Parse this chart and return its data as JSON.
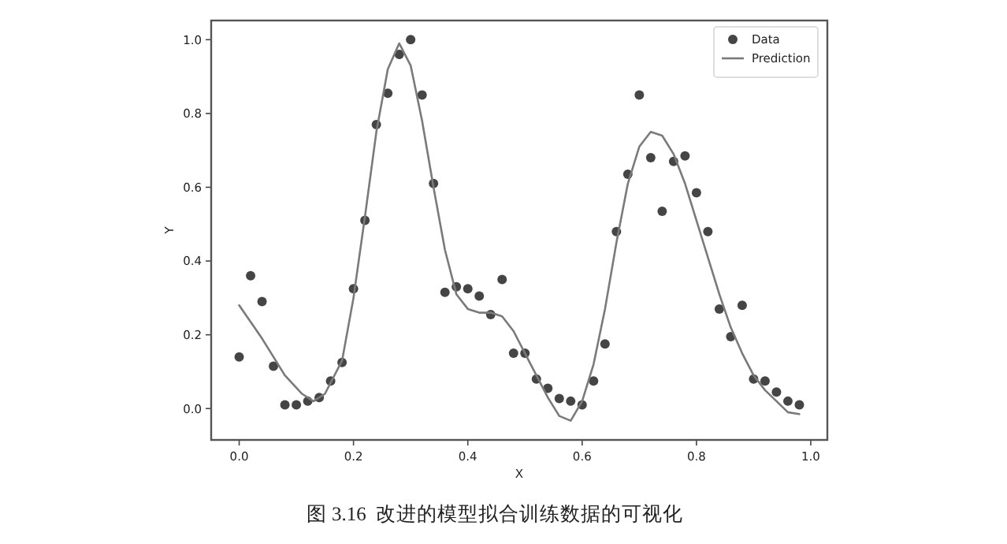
{
  "chart_data": {
    "type": "scatter",
    "xlabel": "X",
    "ylabel": "Y",
    "annotations": [
      "图 3.16  改进的模型拟合训练数据的可视化"
    ],
    "xlim": [
      -0.049,
      1.029
    ],
    "ylim": [
      -0.085,
      1.052
    ],
    "xticks": [
      {
        "value": 0,
        "label": "0.0"
      },
      {
        "value": 0.2,
        "label": "0.2"
      },
      {
        "value": 0.4,
        "label": "0.4"
      },
      {
        "value": 0.6,
        "label": "0.6"
      },
      {
        "value": 0.8,
        "label": "0.8"
      },
      {
        "value": 1,
        "label": "1.0"
      }
    ],
    "yticks": [
      {
        "value": 0,
        "label": "0.0"
      },
      {
        "value": 0.2,
        "label": "0.2"
      },
      {
        "value": 0.4,
        "label": "0.4"
      },
      {
        "value": 0.6,
        "label": "0.6"
      },
      {
        "value": 0.8,
        "label": "0.8"
      },
      {
        "value": 1,
        "label": "1.0"
      }
    ],
    "legend": "top right",
    "series": [
      {
        "name": "Data",
        "color": "#454545",
        "marker": "circle",
        "x": [
          0,
          0.02,
          0.04,
          0.06,
          0.08,
          0.1,
          0.12,
          0.14,
          0.16,
          0.18,
          0.2,
          0.22,
          0.24,
          0.26,
          0.28,
          0.3,
          0.32,
          0.34,
          0.36,
          0.38,
          0.4,
          0.42,
          0.44,
          0.46,
          0.48,
          0.5,
          0.52,
          0.54,
          0.56,
          0.58,
          0.6,
          0.62,
          0.64,
          0.66,
          0.68,
          0.7,
          0.72,
          0.74,
          0.76,
          0.78,
          0.8,
          0.82,
          0.84,
          0.86,
          0.88,
          0.9,
          0.92,
          0.94,
          0.96,
          0.98
        ],
        "values": [
          0.14,
          0.36,
          0.29,
          0.115,
          0.01,
          0.01,
          0.02,
          0.03,
          0.075,
          0.125,
          0.325,
          0.51,
          0.77,
          0.855,
          0.96,
          1.0,
          0.85,
          0.61,
          0.315,
          0.33,
          0.325,
          0.305,
          0.255,
          0.35,
          0.15,
          0.15,
          0.08,
          0.055,
          0.027,
          0.02,
          0.01,
          0.075,
          0.175,
          0.48,
          0.635,
          0.85,
          0.68,
          0.535,
          0.67,
          0.685,
          0.585,
          0.48,
          0.27,
          0.195,
          0.28,
          0.08,
          0.075,
          0.045,
          0.02,
          0.01
        ]
      },
      {
        "name": "Prediction",
        "type": "line",
        "color": "#7a7a7a",
        "marker": "none",
        "x": [
          0,
          0.04,
          0.08,
          0.11,
          0.13,
          0.15,
          0.18,
          0.2,
          0.22,
          0.24,
          0.26,
          0.28,
          0.3,
          0.32,
          0.34,
          0.36,
          0.38,
          0.4,
          0.42,
          0.44,
          0.46,
          0.48,
          0.5,
          0.52,
          0.54,
          0.56,
          0.58,
          0.6,
          0.62,
          0.64,
          0.66,
          0.68,
          0.7,
          0.72,
          0.74,
          0.76,
          0.78,
          0.8,
          0.82,
          0.84,
          0.86,
          0.88,
          0.9,
          0.92,
          0.94,
          0.96,
          0.98
        ],
        "values": [
          0.28,
          0.19,
          0.09,
          0.04,
          0.02,
          0.04,
          0.13,
          0.3,
          0.52,
          0.75,
          0.92,
          0.99,
          0.93,
          0.78,
          0.6,
          0.43,
          0.31,
          0.27,
          0.26,
          0.26,
          0.25,
          0.21,
          0.15,
          0.09,
          0.03,
          -0.02,
          -0.033,
          0.02,
          0.12,
          0.27,
          0.45,
          0.61,
          0.71,
          0.75,
          0.74,
          0.69,
          0.61,
          0.51,
          0.41,
          0.31,
          0.22,
          0.15,
          0.09,
          0.05,
          0.02,
          -0.01,
          -0.015
        ]
      }
    ]
  }
}
